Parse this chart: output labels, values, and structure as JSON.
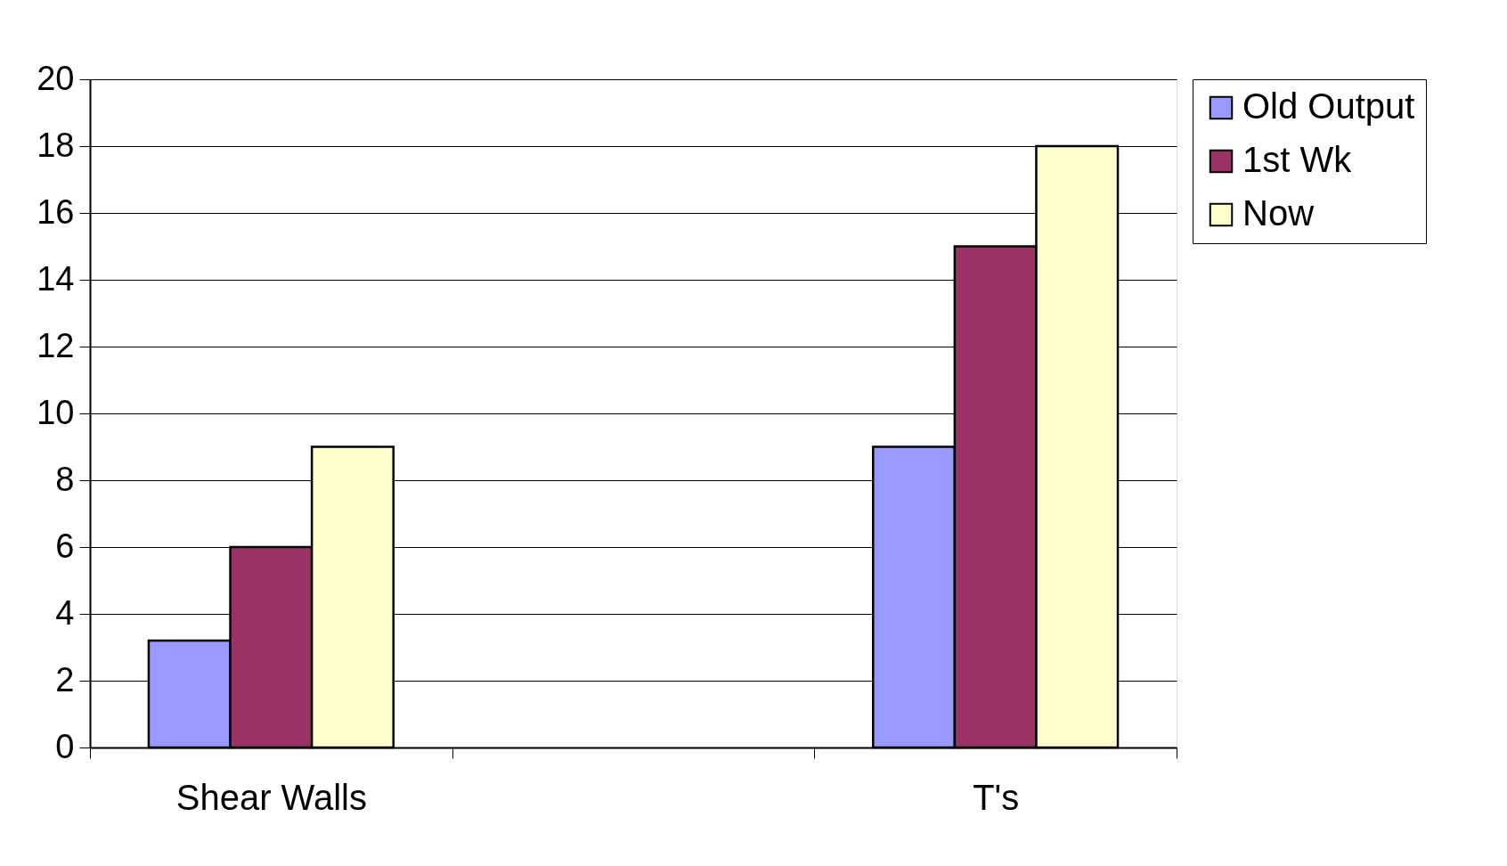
{
  "chart_data": {
    "type": "bar",
    "categories": [
      "Shear Walls",
      null,
      "T's"
    ],
    "series": [
      {
        "name": "Old Output",
        "color": "#9999ff",
        "values": [
          3.2,
          null,
          9
        ]
      },
      {
        "name": "1st Wk",
        "color": "#993366",
        "values": [
          6,
          null,
          15
        ]
      },
      {
        "name": "Now",
        "color": "#ffffcc",
        "values": [
          9,
          null,
          18
        ]
      }
    ],
    "ylim": [
      0,
      20
    ],
    "yticks": [
      0,
      2,
      4,
      6,
      8,
      10,
      12,
      14,
      16,
      18,
      20
    ],
    "grid": "y",
    "legend": "right"
  }
}
